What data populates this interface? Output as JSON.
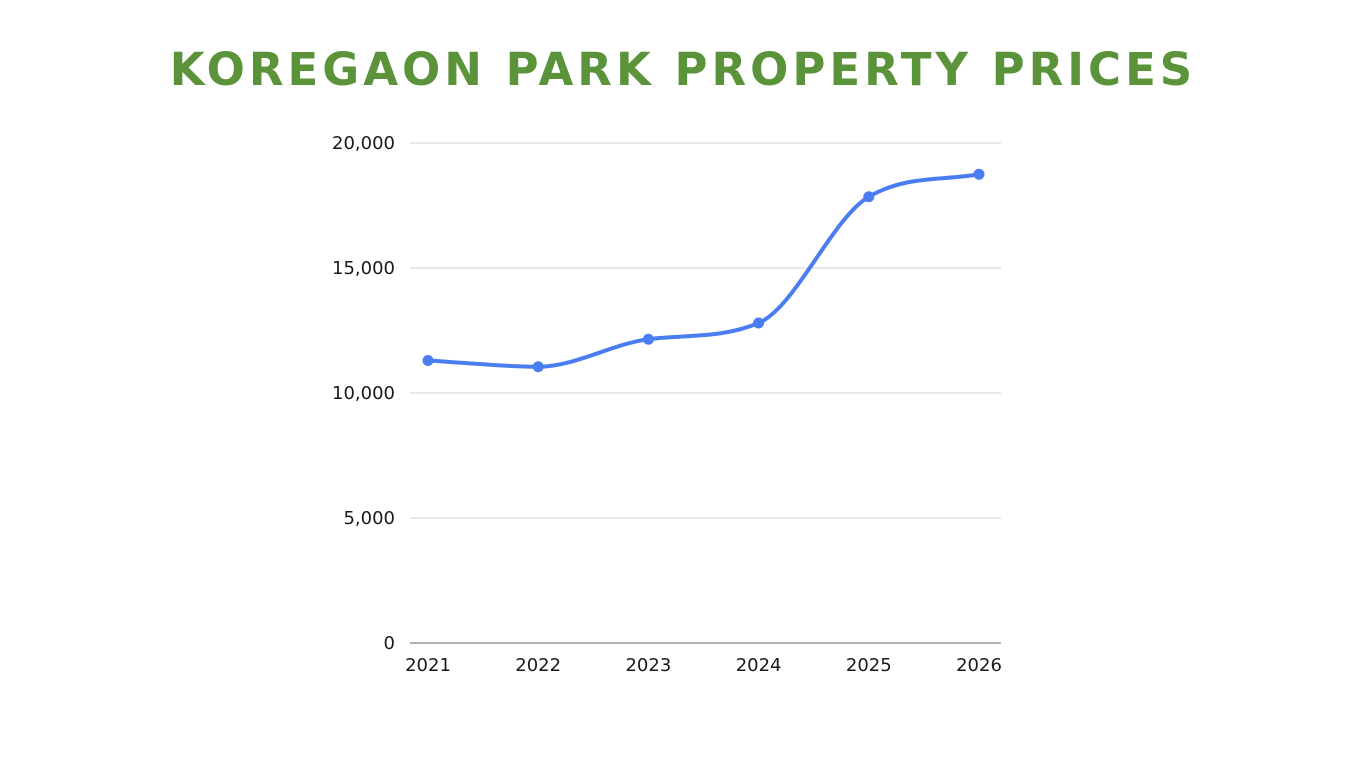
{
  "title": "KOREGAON PARK PROPERTY PRICES",
  "colors": {
    "title": "#5a9339",
    "line": "#4a7ef0",
    "grid": "#d0d0d0",
    "axis": "#999999",
    "text": "#1a1a1a"
  },
  "chart_data": {
    "type": "line",
    "title": "KOREGAON PARK PROPERTY PRICES",
    "xlabel": "",
    "ylabel": "",
    "categories": [
      "2021",
      "2022",
      "2023",
      "2024",
      "2025",
      "2026"
    ],
    "series": [
      {
        "values": [
          11300,
          11050,
          12150,
          12800,
          17850,
          18750
        ],
        "smooth": true,
        "markers": true
      }
    ],
    "ylim": [
      0,
      20000
    ],
    "yticks": [
      0,
      5000,
      10000,
      15000,
      20000
    ],
    "ytick_labels": [
      "0",
      "5,000",
      "10,000",
      "15,000",
      "20,000"
    ],
    "grid": true,
    "legend": "none"
  }
}
